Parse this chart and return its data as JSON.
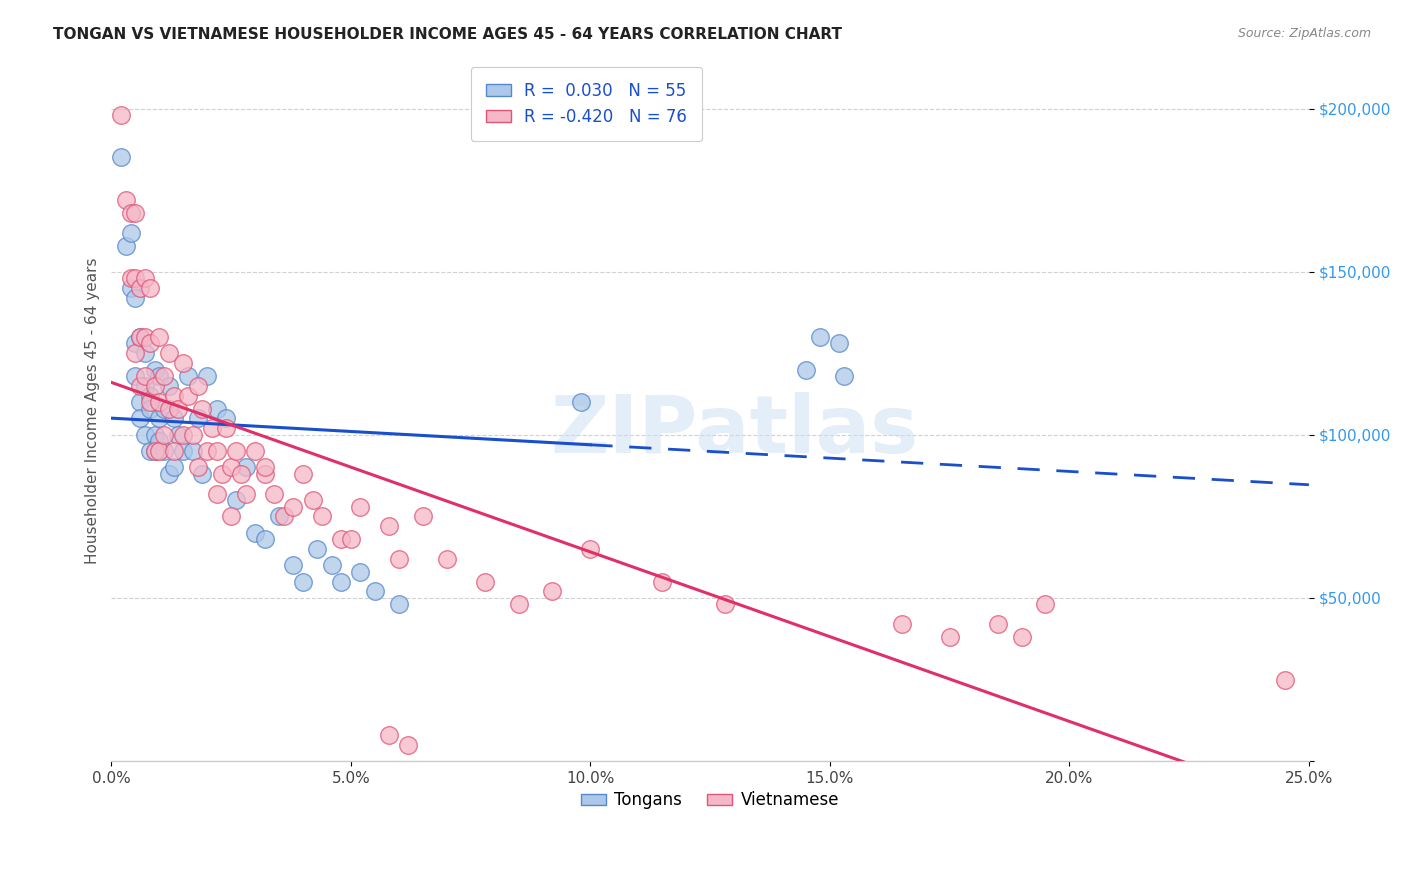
{
  "title": "TONGAN VS VIETNAMESE HOUSEHOLDER INCOME AGES 45 - 64 YEARS CORRELATION CHART",
  "source": "Source: ZipAtlas.com",
  "ylabel": "Householder Income Ages 45 - 64 years",
  "xmin": 0.0,
  "xmax": 0.25,
  "ymin": 0,
  "ymax": 215000,
  "tongan_color": "#adc8e8",
  "vietnamese_color": "#f5b8c8",
  "tongan_edge": "#5588cc",
  "vietnamese_edge": "#e05575",
  "trend_blue": "#1a4fcc",
  "trend_pink": "#e03068",
  "R_tongan": 0.03,
  "N_tongan": 55,
  "R_vietnamese": -0.42,
  "N_vietnamese": 76,
  "yticks": [
    0,
    50000,
    100000,
    150000,
    200000
  ],
  "ytick_labels": [
    "",
    "$50,000",
    "$100,000",
    "$150,000",
    "$200,000"
  ],
  "xticks": [
    0.0,
    0.05,
    0.1,
    0.15,
    0.2,
    0.25
  ],
  "xtick_labels": [
    "0.0%",
    "5.0%",
    "10.0%",
    "15.0%",
    "20.0%",
    "25.0%"
  ],
  "watermark": "ZIPatlas",
  "tongan_x": [
    0.002,
    0.003,
    0.004,
    0.004,
    0.005,
    0.005,
    0.005,
    0.006,
    0.006,
    0.006,
    0.007,
    0.007,
    0.007,
    0.008,
    0.008,
    0.008,
    0.009,
    0.009,
    0.009,
    0.01,
    0.01,
    0.01,
    0.011,
    0.011,
    0.012,
    0.012,
    0.013,
    0.013,
    0.014,
    0.015,
    0.016,
    0.017,
    0.018,
    0.019,
    0.02,
    0.022,
    0.024,
    0.026,
    0.028,
    0.03,
    0.032,
    0.035,
    0.038,
    0.04,
    0.043,
    0.046,
    0.048,
    0.052,
    0.055,
    0.06,
    0.148,
    0.152,
    0.145,
    0.153,
    0.098
  ],
  "tongan_y": [
    185000,
    158000,
    162000,
    145000,
    128000,
    118000,
    142000,
    110000,
    105000,
    130000,
    125000,
    115000,
    100000,
    112000,
    108000,
    95000,
    120000,
    100000,
    95000,
    118000,
    105000,
    98000,
    108000,
    95000,
    115000,
    88000,
    105000,
    90000,
    100000,
    95000,
    118000,
    95000,
    105000,
    88000,
    118000,
    108000,
    105000,
    80000,
    90000,
    70000,
    68000,
    75000,
    60000,
    55000,
    65000,
    60000,
    55000,
    58000,
    52000,
    48000,
    130000,
    128000,
    120000,
    118000,
    110000
  ],
  "vietnamese_x": [
    0.002,
    0.003,
    0.004,
    0.004,
    0.005,
    0.005,
    0.005,
    0.006,
    0.006,
    0.006,
    0.007,
    0.007,
    0.007,
    0.008,
    0.008,
    0.008,
    0.009,
    0.009,
    0.01,
    0.01,
    0.01,
    0.011,
    0.011,
    0.012,
    0.012,
    0.013,
    0.013,
    0.014,
    0.015,
    0.015,
    0.016,
    0.017,
    0.018,
    0.018,
    0.019,
    0.02,
    0.021,
    0.022,
    0.023,
    0.024,
    0.025,
    0.026,
    0.027,
    0.028,
    0.03,
    0.032,
    0.034,
    0.036,
    0.038,
    0.04,
    0.042,
    0.044,
    0.048,
    0.052,
    0.058,
    0.065,
    0.07,
    0.078,
    0.085,
    0.092,
    0.1,
    0.115,
    0.128,
    0.165,
    0.175,
    0.032,
    0.025,
    0.022,
    0.05,
    0.06,
    0.195,
    0.185,
    0.19,
    0.062,
    0.058,
    0.245
  ],
  "vietnamese_y": [
    198000,
    172000,
    168000,
    148000,
    168000,
    148000,
    125000,
    145000,
    130000,
    115000,
    148000,
    130000,
    118000,
    145000,
    128000,
    110000,
    115000,
    95000,
    130000,
    110000,
    95000,
    118000,
    100000,
    125000,
    108000,
    112000,
    95000,
    108000,
    122000,
    100000,
    112000,
    100000,
    115000,
    90000,
    108000,
    95000,
    102000,
    95000,
    88000,
    102000,
    90000,
    95000,
    88000,
    82000,
    95000,
    88000,
    82000,
    75000,
    78000,
    88000,
    80000,
    75000,
    68000,
    78000,
    72000,
    75000,
    62000,
    55000,
    48000,
    52000,
    65000,
    55000,
    48000,
    42000,
    38000,
    90000,
    75000,
    82000,
    68000,
    62000,
    48000,
    42000,
    38000,
    5000,
    8000,
    25000
  ]
}
